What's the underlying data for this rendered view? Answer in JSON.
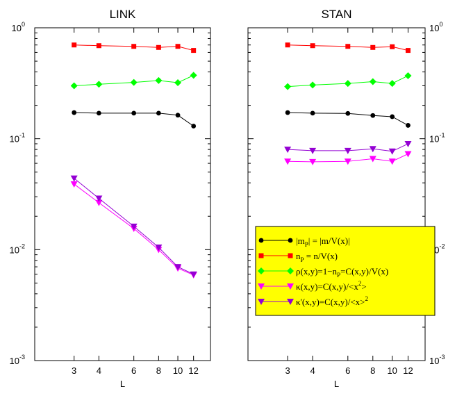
{
  "chart_data": [
    {
      "type": "line",
      "title": "LINK",
      "xlabel": "L",
      "ylabel": "",
      "x_scale": "log",
      "y_scale": "log",
      "xlim": [
        1.9,
        14.6
      ],
      "ylim": [
        0.001,
        1
      ],
      "x_ticks": [
        3,
        4,
        6,
        8,
        10,
        12
      ],
      "x_tick_labels": [
        "3",
        "4",
        "6",
        "8",
        "10",
        "12"
      ],
      "y_ticks": [
        0.001,
        0.01,
        0.1,
        1
      ],
      "y_tick_labels": [
        {
          "base": "10",
          "exp": "-3"
        },
        {
          "base": "10",
          "exp": "-2"
        },
        {
          "base": "10",
          "exp": "-1"
        },
        {
          "base": "10",
          "exp": "0"
        }
      ],
      "x": [
        3,
        4,
        6,
        8,
        10,
        12
      ],
      "series": [
        {
          "key": "m",
          "color": "#000000",
          "marker": "circle",
          "values": [
            0.172,
            0.17,
            0.17,
            0.17,
            0.163,
            0.13
          ]
        },
        {
          "key": "n",
          "color": "#ff0000",
          "marker": "square",
          "values": [
            0.7,
            0.69,
            0.68,
            0.665,
            0.68,
            0.625
          ]
        },
        {
          "key": "rho",
          "color": "#00ff00",
          "marker": "diamond",
          "values": [
            0.3,
            0.31,
            0.322,
            0.335,
            0.32,
            0.373
          ]
        },
        {
          "key": "kappa",
          "color": "#ff00ff",
          "marker": "triangle-down",
          "values": [
            0.039,
            0.0265,
            0.0155,
            0.01,
            0.0068,
            0.0059
          ]
        },
        {
          "key": "kappa_prime",
          "color": "#9400d3",
          "marker": "triangle-down",
          "values": [
            0.044,
            0.029,
            0.0162,
            0.0105,
            0.007,
            0.006
          ]
        }
      ]
    },
    {
      "type": "line",
      "title": "STAN",
      "xlabel": "L",
      "ylabel": "",
      "x_scale": "log",
      "y_scale": "log",
      "xlim": [
        1.9,
        14.6
      ],
      "ylim": [
        0.001,
        1
      ],
      "x_ticks": [
        3,
        4,
        6,
        8,
        10,
        12
      ],
      "x_tick_labels": [
        "3",
        "4",
        "6",
        "8",
        "10",
        "12"
      ],
      "y_ticks": [
        0.001,
        0.01,
        0.1,
        1
      ],
      "y_tick_labels": [
        {
          "base": "10",
          "exp": "-3"
        },
        {
          "base": "10",
          "exp": "-2"
        },
        {
          "base": "10",
          "exp": "-1"
        },
        {
          "base": "10",
          "exp": "0"
        }
      ],
      "x": [
        3,
        4,
        6,
        8,
        10,
        12
      ],
      "series": [
        {
          "key": "m",
          "color": "#000000",
          "marker": "circle",
          "values": [
            0.172,
            0.17,
            0.169,
            0.162,
            0.158,
            0.132
          ]
        },
        {
          "key": "n",
          "color": "#ff0000",
          "marker": "square",
          "values": [
            0.7,
            0.69,
            0.68,
            0.665,
            0.675,
            0.625
          ]
        },
        {
          "key": "rho",
          "color": "#00ff00",
          "marker": "diamond",
          "values": [
            0.295,
            0.305,
            0.315,
            0.327,
            0.315,
            0.37
          ]
        },
        {
          "key": "kappa",
          "color": "#ff00ff",
          "marker": "triangle-down",
          "values": [
            0.0625,
            0.062,
            0.0625,
            0.066,
            0.0625,
            0.073
          ]
        },
        {
          "key": "kappa_prime",
          "color": "#9400d3",
          "marker": "triangle-down",
          "values": [
            0.08,
            0.078,
            0.078,
            0.081,
            0.077,
            0.09
          ]
        }
      ],
      "legend": {
        "placement": "lower-right",
        "background": "#ffff00",
        "entries": [
          {
            "key": "m",
            "color": "#000000",
            "marker": "circle",
            "label": "|m_P| = |m/V(x)|"
          },
          {
            "key": "n",
            "color": "#ff0000",
            "marker": "square",
            "label": "n_P = n/V(x)"
          },
          {
            "key": "rho",
            "color": "#00ff00",
            "marker": "diamond",
            "label": "ρ(x,y)=1−n_P=C(x,y)/V(x)"
          },
          {
            "key": "kappa",
            "color": "#ff00ff",
            "marker": "triangle-down",
            "label": "κ(x,y)=C(x,y)/<x^2>"
          },
          {
            "key": "kappa_prime",
            "color": "#9400d3",
            "marker": "triangle-down",
            "label": "κ'(x,y)=C(x,y)/<x>^2"
          }
        ]
      }
    }
  ]
}
